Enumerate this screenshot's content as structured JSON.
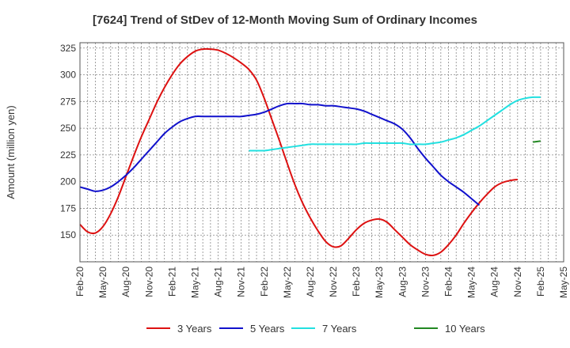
{
  "chart_data": {
    "type": "line",
    "title": "[7624]  Trend of StDev of 12-Month Moving Sum of Ordinary Incomes",
    "xlabel": "",
    "ylabel": "Amount (million yen)",
    "ylim": [
      125,
      330
    ],
    "yticks": [
      150,
      175,
      200,
      225,
      250,
      275,
      300,
      325
    ],
    "xticks": [
      "Feb-20",
      "May-20",
      "Aug-20",
      "Nov-20",
      "Feb-21",
      "May-21",
      "Aug-21",
      "Nov-21",
      "Feb-22",
      "May-22",
      "Aug-22",
      "Nov-22",
      "Feb-23",
      "May-23",
      "Aug-23",
      "Nov-23",
      "Feb-24",
      "May-24",
      "Aug-24",
      "Nov-24",
      "Feb-25",
      "May-25"
    ],
    "x_unit": "month index from Feb-20",
    "grid": true,
    "legend_position": "bottom",
    "series": [
      {
        "name": "3 Years",
        "color": "#dd1111",
        "x": [
          0,
          1,
          2,
          3,
          4,
          5,
          6,
          7,
          8,
          9,
          10,
          11,
          12,
          13,
          14,
          15,
          16,
          17,
          18,
          19,
          20,
          21,
          22,
          23,
          24,
          25,
          26,
          27,
          28,
          29,
          30,
          31,
          32,
          33,
          34,
          35,
          36,
          37,
          38,
          39,
          40,
          41,
          42,
          43,
          44,
          45,
          46,
          47,
          48,
          49,
          50,
          51,
          52,
          53,
          54,
          55,
          56,
          57,
          58,
          59,
          60
        ],
        "values": [
          160,
          153,
          152,
          158,
          170,
          186,
          205,
          224,
          242,
          258,
          274,
          288,
          300,
          310,
          317,
          322,
          324,
          324,
          323,
          320,
          316,
          311,
          305,
          295,
          278,
          258,
          238,
          217,
          197,
          180,
          166,
          154,
          144,
          139,
          140,
          147,
          155,
          161,
          164,
          165,
          162,
          155,
          148,
          141,
          136,
          132,
          131,
          134,
          141,
          150,
          161,
          171,
          180,
          188,
          195,
          199,
          201,
          202,
          null,
          null,
          null
        ]
      },
      {
        "name": "5 Years",
        "color": "#1111cc",
        "x": [
          0,
          1,
          2,
          3,
          4,
          5,
          6,
          7,
          8,
          9,
          10,
          11,
          12,
          13,
          14,
          15,
          16,
          17,
          18,
          19,
          20,
          21,
          22,
          23,
          24,
          25,
          26,
          27,
          28,
          29,
          30,
          31,
          32,
          33,
          34,
          35,
          36,
          37,
          38,
          39,
          40,
          41,
          42,
          43,
          44,
          45,
          46,
          47,
          48,
          49,
          50,
          51,
          52,
          53,
          54,
          55,
          56,
          57,
          58,
          59,
          60
        ],
        "values": [
          195,
          193,
          191,
          192,
          195,
          200,
          206,
          213,
          221,
          229,
          237,
          245,
          251,
          256,
          259,
          261,
          261,
          261,
          261,
          261,
          261,
          261,
          262,
          263,
          265,
          268,
          271,
          273,
          273,
          273,
          272,
          272,
          271,
          271,
          270,
          269,
          268,
          266,
          263,
          260,
          257,
          254,
          249,
          241,
          231,
          222,
          214,
          206,
          200,
          195,
          190,
          184,
          178,
          null,
          null,
          null,
          null,
          null,
          null,
          null,
          null
        ]
      },
      {
        "name": "7 Years",
        "color": "#22e0e0",
        "x": [
          0,
          1,
          2,
          3,
          4,
          5,
          6,
          7,
          8,
          9,
          10,
          11,
          12,
          13,
          14,
          15,
          16,
          17,
          18,
          19,
          20,
          21,
          22,
          23,
          24,
          25,
          26,
          27,
          28,
          29,
          30,
          31,
          32,
          33,
          34,
          35,
          36,
          37,
          38,
          39,
          40,
          41,
          42,
          43,
          44,
          45,
          46,
          47,
          48,
          49,
          50,
          51,
          52,
          53,
          54,
          55,
          56,
          57,
          58,
          59,
          60
        ],
        "values": [
          null,
          null,
          null,
          null,
          null,
          null,
          null,
          null,
          null,
          null,
          null,
          null,
          null,
          null,
          null,
          null,
          null,
          null,
          null,
          null,
          null,
          null,
          null,
          null,
          null,
          null,
          null,
          null,
          null,
          null,
          null,
          null,
          null,
          null,
          null,
          null,
          null,
          null,
          null,
          null,
          null,
          null,
          null,
          null,
          null,
          null,
          null,
          null,
          null,
          null,
          null,
          null,
          null,
          null,
          null,
          null,
          null,
          null,
          null,
          null,
          null
        ]
      },
      {
        "name": "10 Years",
        "color": "#228822",
        "x": [
          59,
          60
        ],
        "values": [
          237,
          238
        ]
      }
    ],
    "series_7y_x": [
      22,
      23,
      24,
      25,
      26,
      27,
      28,
      29,
      30,
      31,
      32,
      33,
      34,
      35,
      36,
      37,
      38,
      39,
      40,
      41,
      42,
      43,
      44,
      45,
      46,
      47,
      48,
      49,
      50,
      51,
      52,
      53,
      54,
      55,
      56,
      57,
      58,
      59,
      60
    ],
    "series_7y_values": [
      229,
      229,
      229,
      230,
      231,
      232,
      233,
      234,
      235,
      235,
      235,
      235,
      235,
      235,
      235,
      236,
      236,
      236,
      236,
      236,
      236,
      235,
      235,
      235,
      236,
      237,
      239,
      241,
      244,
      248,
      252,
      257,
      262,
      267,
      272,
      276,
      278,
      279,
      279
    ]
  }
}
